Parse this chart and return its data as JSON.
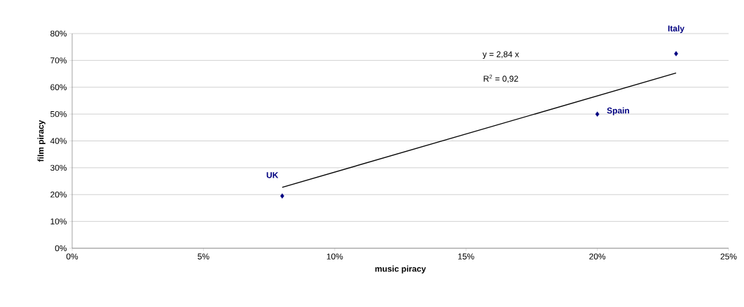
{
  "chart_data": {
    "type": "scatter",
    "xlabel": "music piracy",
    "ylabel": "film piracy",
    "xlim": [
      0,
      25
    ],
    "ylim": [
      0,
      80
    ],
    "xticks": [
      {
        "value": 0,
        "label": "0%"
      },
      {
        "value": 5,
        "label": "5%"
      },
      {
        "value": 10,
        "label": "10%"
      },
      {
        "value": 15,
        "label": "15%"
      },
      {
        "value": 20,
        "label": "20%"
      },
      {
        "value": 25,
        "label": "25%"
      }
    ],
    "yticks": [
      {
        "value": 0,
        "label": "0%"
      },
      {
        "value": 10,
        "label": "10%"
      },
      {
        "value": 20,
        "label": "20%"
      },
      {
        "value": 30,
        "label": "30%"
      },
      {
        "value": 40,
        "label": "40%"
      },
      {
        "value": 50,
        "label": "50%"
      },
      {
        "value": 60,
        "label": "60%"
      },
      {
        "value": 70,
        "label": "70%"
      },
      {
        "value": 80,
        "label": "80%"
      }
    ],
    "grid": "y",
    "series": [
      {
        "color": "#000080",
        "marker": "diamond",
        "x": [
          8,
          20,
          23
        ],
        "values": [
          19.5,
          50,
          72.5
        ]
      },
      {
        "type": "line",
        "color": "#000000",
        "marker": "none",
        "x": [
          8,
          23
        ],
        "values": [
          22.7,
          65.3
        ]
      }
    ],
    "annotations": [
      {
        "text": "UK",
        "x": 8,
        "y": 19.5
      },
      {
        "text": "Spain",
        "x": 20,
        "y": 50
      },
      {
        "text": "Italy",
        "x": 23,
        "y": 72.5
      },
      "y =  2,84   x",
      "R$^{2}$ =  0,92"
    ]
  }
}
